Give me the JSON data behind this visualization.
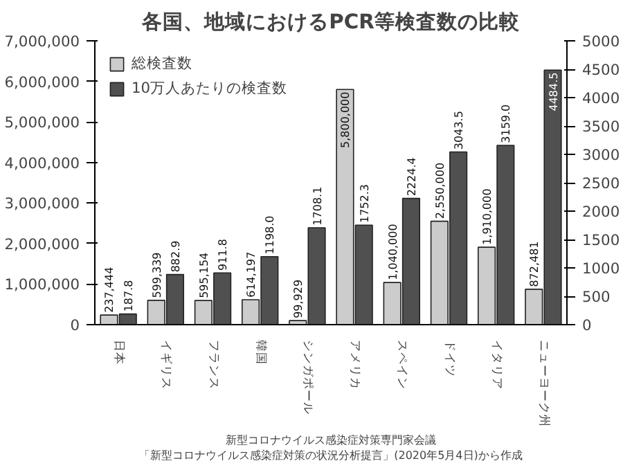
{
  "chart_data": {
    "type": "bar",
    "title": "各国、地域におけるPCR等検査数の比較",
    "categories": [
      "日本",
      "イギリス",
      "フランス",
      "韓国",
      "シンガポール",
      "アメリカ",
      "スペイン",
      "ドイツ",
      "イタリア",
      "ニューヨーク州"
    ],
    "series": [
      {
        "name": "総検査数",
        "color": "#cccccc",
        "values": [
          237444,
          599339,
          595154,
          614197,
          99929,
          5800000,
          1040000,
          2550000,
          1910000,
          872481
        ],
        "value_labels": [
          "237,444",
          "599,339",
          "595,154",
          "614,197",
          "99,929",
          "5,800,000",
          "1,040,000",
          "2,550,000",
          "1,910,000",
          "872,481"
        ]
      },
      {
        "name": "10万人あたりの検査数",
        "color": "#505050",
        "axis": "y2",
        "values": [
          187.8,
          882.9,
          911.8,
          1198.0,
          1708.1,
          1752.3,
          2224.4,
          3043.5,
          3159.0,
          4484.5
        ],
        "value_labels": [
          "187.8",
          "882.9",
          "911.8",
          "1198.0",
          "1708.1",
          "1752.3",
          "2224.4",
          "3043.5",
          "3159.0",
          "4484.5"
        ]
      }
    ],
    "ylim": [
      0,
      7000000
    ],
    "yticks": [
      0,
      {
        "value": 1000000,
        "label": "1,000,000"
      },
      {
        "value": 2000000,
        "label": "2,000,000"
      },
      {
        "value": 3000000,
        "label": "3,000,000"
      },
      {
        "value": 4000000,
        "label": "4,000,000"
      },
      {
        "value": 5000000,
        "label": "5,000,000"
      },
      {
        "value": 6000000,
        "label": "6,000,000"
      },
      {
        "value": 7000000,
        "label": "7,000,000"
      }
    ],
    "y2lim": [
      0,
      5000
    ],
    "y2ticks": [
      0,
      500,
      1000,
      1500,
      2000,
      2500,
      3000,
      3500,
      4000,
      4500,
      5000
    ],
    "grid": false,
    "legend": "top left",
    "annotations": [
      "新型コロナウイルス感染症対策専門家会議",
      "「新型コロナウイルス感染症対策の状況分析提言」(2020年5月4日)から作成"
    ]
  }
}
